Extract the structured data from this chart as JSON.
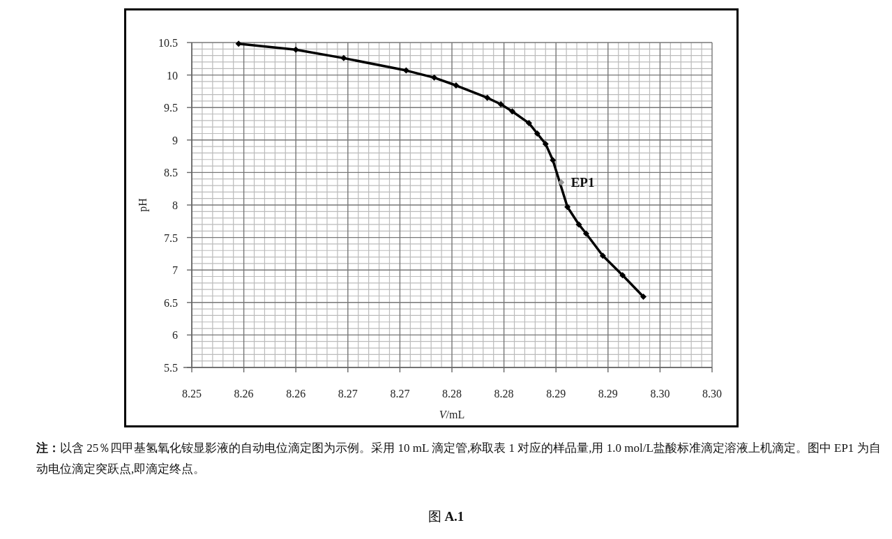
{
  "chart_data": {
    "type": "line",
    "xlabel": "*V*/mL",
    "ylabel": "pH",
    "xlim": [
      8.25,
      8.3
    ],
    "ylim": [
      5.5,
      10.5
    ],
    "xticks": [
      8.25,
      {
        "value": 8.255,
        "label": "8.26"
      },
      8.26,
      {
        "value": 8.265,
        "label": "8.27"
      },
      8.27,
      {
        "value": 8.275,
        "label": "8.28"
      },
      8.28,
      {
        "value": 8.285,
        "label": "8.29"
      },
      8.29,
      {
        "value": 8.295,
        "label": "8.30"
      },
      {
        "value": 8.3,
        "label": "8.30"
      }
    ],
    "yticks": [
      5.5,
      6,
      6.5,
      7,
      7.5,
      8,
      8.5,
      9,
      9.5,
      10,
      10.5
    ],
    "grid": true,
    "marker": "diamond",
    "line_style": "solid",
    "series": [
      {
        "color": "#000000",
        "x": [
          8.2545,
          8.26,
          8.2646,
          8.2706,
          8.2733,
          8.2754,
          8.2784,
          8.2797,
          8.2808,
          8.2824,
          8.2832,
          8.284,
          8.2847,
          8.2861,
          8.2872,
          8.2879,
          8.2895,
          8.2914,
          8.2934
        ],
        "values": [
          10.48,
          10.39,
          10.26,
          10.07,
          9.96,
          9.84,
          9.65,
          9.55,
          9.44,
          9.26,
          9.1,
          8.94,
          8.69,
          7.97,
          7.7,
          7.56,
          7.22,
          6.92,
          6.59
        ]
      },
      {
        "type": "scatter",
        "name": "**EP1**",
        "color": "#999999",
        "x": [
          8.2855
        ],
        "values": [
          8.35
        ]
      }
    ],
    "annotations": [
      "**注：**以含 25％四甲基氢氧化铵显影液的自动电位滴定图为示例。采用 10 mL 滴定管,称取表 1 对应的样品量,用 1.0 mol/L盐酸标准滴定溶液上机滴定。图中 EP1 为自动电位滴定突跃点,即滴定终点。",
      "图 **A.1**"
    ]
  }
}
